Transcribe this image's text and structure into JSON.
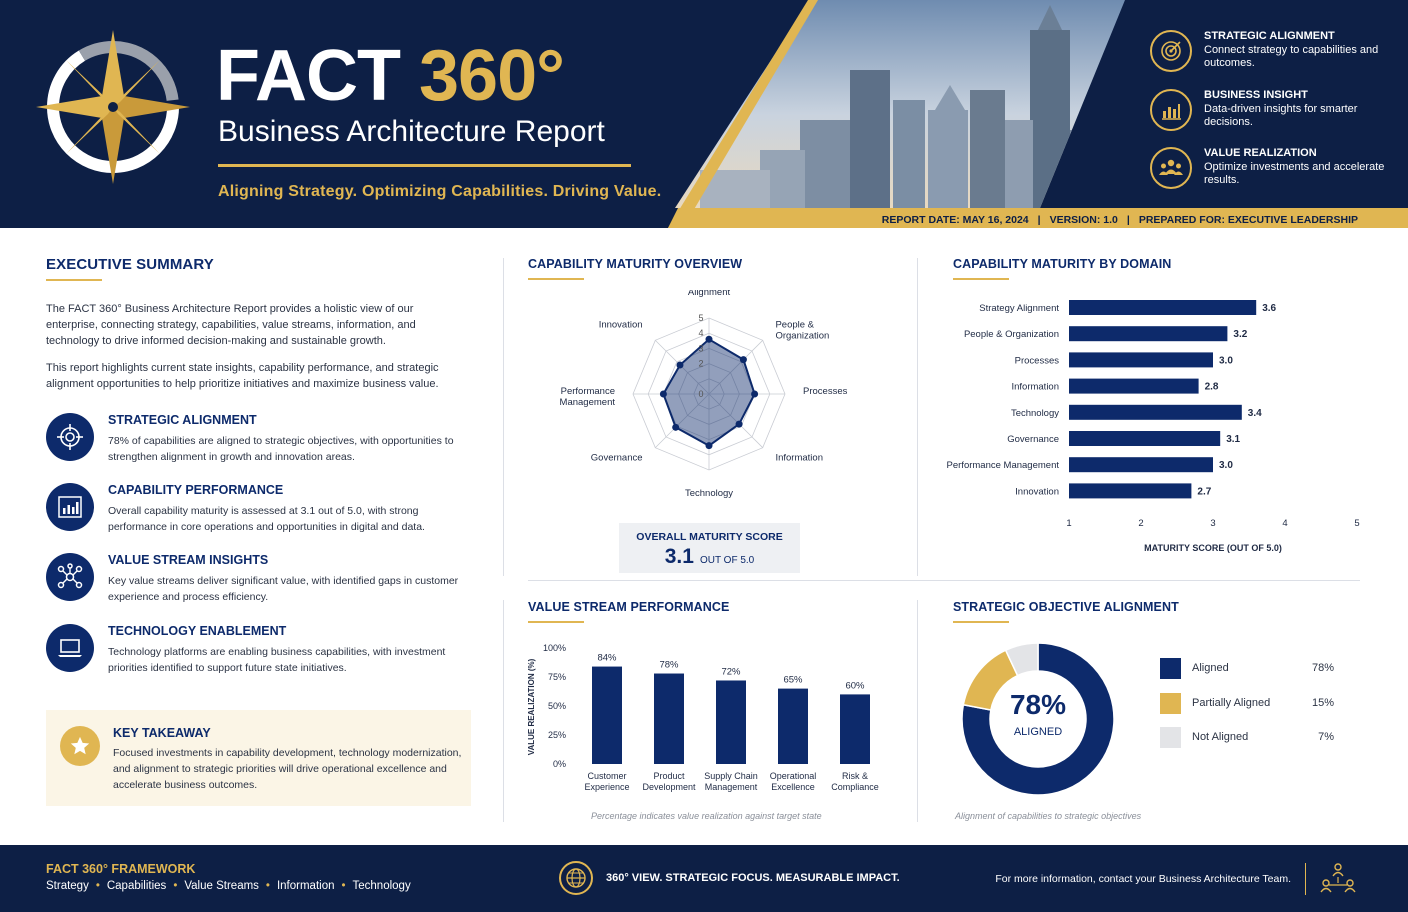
{
  "header": {
    "title_main": "FACT",
    "title_accent": "360°",
    "subtitle": "Business Architecture Report",
    "tagline": "Aligning Strategy.  Optimizing Capabilities.  Driving Value.",
    "features": [
      {
        "title": "STRATEGIC ALIGNMENT",
        "desc": "Connect strategy to capabilities and outcomes.",
        "icon": "target-icon"
      },
      {
        "title": "BUSINESS INSIGHT",
        "desc": "Data-driven insights for smarter decisions.",
        "icon": "bar-chart-icon"
      },
      {
        "title": "VALUE REALIZATION",
        "desc": "Optimize investments and accelerate results.",
        "icon": "people-icon"
      }
    ],
    "meta": {
      "report_date": "REPORT DATE: MAY 16, 2024",
      "version": "VERSION: 1.0",
      "prepared_for": "PREPARED FOR: EXECUTIVE LEADERSHIP",
      "separator": "|"
    }
  },
  "executive_summary": {
    "title": "EXECUTIVE SUMMARY",
    "para1": "The FACT 360° Business Architecture Report provides a holistic view of our enterprise, connecting strategy, capabilities, value streams, information, and technology to drive informed decision-making and sustainable growth.",
    "para2": "This report highlights current state insights, capability performance, and strategic alignment opportunities to help prioritize initiatives and maximize business value.",
    "items": [
      {
        "title": "STRATEGIC ALIGNMENT",
        "desc": "78% of capabilities are aligned to strategic objectives, with opportunities to strengthen alignment in growth and innovation areas."
      },
      {
        "title": "CAPABILITY PERFORMANCE",
        "desc": "Overall capability maturity is assessed at 3.1 out of 5.0, with strong performance in core operations and opportunities in digital and data."
      },
      {
        "title": "VALUE STREAM INSIGHTS",
        "desc": "Key value streams deliver significant value, with identified gaps in customer experience and process efficiency."
      },
      {
        "title": "TECHNOLOGY ENABLEMENT",
        "desc": "Technology platforms are enabling business capabilities, with investment priorities identified to support future state initiatives."
      }
    ],
    "takeaway": {
      "title": "KEY TAKEAWAY",
      "desc": "Focused investments in capability development, technology modernization, and alignment to strategic priorities will drive operational excellence and accelerate business outcomes."
    }
  },
  "maturity_overview": {
    "title": "CAPABILITY MATURITY OVERVIEW",
    "score_label": "OVERALL MATURITY SCORE",
    "score_value": "3.1",
    "score_unit": "OUT OF 5.0"
  },
  "maturity_by_domain": {
    "title": "CAPABILITY MATURITY BY DOMAIN"
  },
  "value_stream": {
    "title": "VALUE STREAM PERFORMANCE",
    "footnote": "Percentage indicates value realization against target state"
  },
  "strategic_alignment": {
    "title": "STRATEGIC OBJECTIVE ALIGNMENT",
    "center_value": "78%",
    "center_label": "ALIGNED",
    "footnote": "Alignment of capabilities to strategic objectives"
  },
  "chart_data": [
    {
      "type": "radar",
      "categories": [
        "Strategy Alignment",
        "People & Organization",
        "Processes",
        "Information",
        "Technology",
        "Governance",
        "Performance Management",
        "Innovation"
      ],
      "values": [
        3.6,
        3.2,
        3.0,
        2.8,
        3.4,
        3.1,
        3.0,
        2.7
      ],
      "ticks": [
        "5",
        "4",
        "3",
        "2",
        "0"
      ],
      "ylim": [
        0,
        5
      ]
    },
    {
      "type": "bar",
      "orientation": "horizontal",
      "categories": [
        "Strategy Alignment",
        "People & Organization",
        "Processes",
        "Information",
        "Technology",
        "Governance",
        "Performance Management",
        "Innovation"
      ],
      "values": [
        3.6,
        3.2,
        3.0,
        2.8,
        3.4,
        3.1,
        3.0,
        2.7
      ],
      "xlim": [
        1,
        5
      ],
      "xticks": [
        "1",
        "2",
        "3",
        "4",
        "5"
      ],
      "xlabel": "MATURITY SCORE (OUT OF 5.0)",
      "color": "#0d2a6b"
    },
    {
      "type": "bar",
      "categories": [
        "Customer Experience",
        "Product Development",
        "Supply Chain Management",
        "Operational Excellence",
        "Risk & Compliance"
      ],
      "values": [
        84,
        78,
        72,
        65,
        60
      ],
      "value_labels": [
        "84%",
        "78%",
        "72%",
        "65%",
        "60%"
      ],
      "ylim": [
        0,
        100
      ],
      "yticks": [
        "0%",
        "25%",
        "50%",
        "75%",
        "100%"
      ],
      "ylabel": "VALUE REALIZATION (%)",
      "color": "#0d2a6b"
    },
    {
      "type": "pie",
      "donut": true,
      "series": [
        {
          "name": "Aligned",
          "value": 78,
          "label": "78%",
          "color": "#0d2a6b"
        },
        {
          "name": "Partially Aligned",
          "value": 15,
          "label": "15%",
          "color": "#e0b652"
        },
        {
          "name": "Not Aligned",
          "value": 7,
          "label": "7%",
          "color": "#e3e4e7"
        }
      ]
    }
  ],
  "footer": {
    "framework_title": "FACT 360° FRAMEWORK",
    "items": [
      "Strategy",
      "Capabilities",
      "Value Streams",
      "Information",
      "Technology"
    ],
    "bullet": "•",
    "tagline": "360° VIEW.  STRATEGIC FOCUS.  MEASURABLE IMPACT.",
    "contact": "For more information, contact your Business Architecture Team."
  }
}
